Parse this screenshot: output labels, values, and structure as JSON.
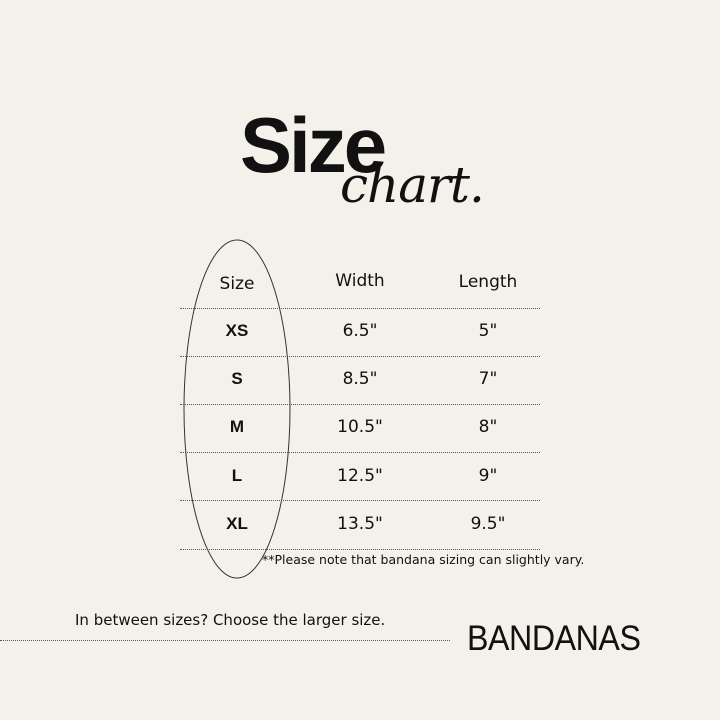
{
  "title": {
    "main": "Size",
    "script": "chart."
  },
  "table": {
    "headers": [
      "Size",
      "Width",
      "Length"
    ],
    "rows": [
      [
        "XS",
        "6.5\"",
        "5\""
      ],
      [
        "S",
        "8.5\"",
        "7\""
      ],
      [
        "M",
        "10.5\"",
        "8\""
      ],
      [
        "L",
        "12.5\"",
        "9\""
      ],
      [
        "XL",
        "13.5\"",
        "9.5\""
      ]
    ]
  },
  "note": "**Please note that bandana sizing can slightly vary.",
  "tip": "In between sizes? Choose the larger size.",
  "product": "BANDANAS"
}
